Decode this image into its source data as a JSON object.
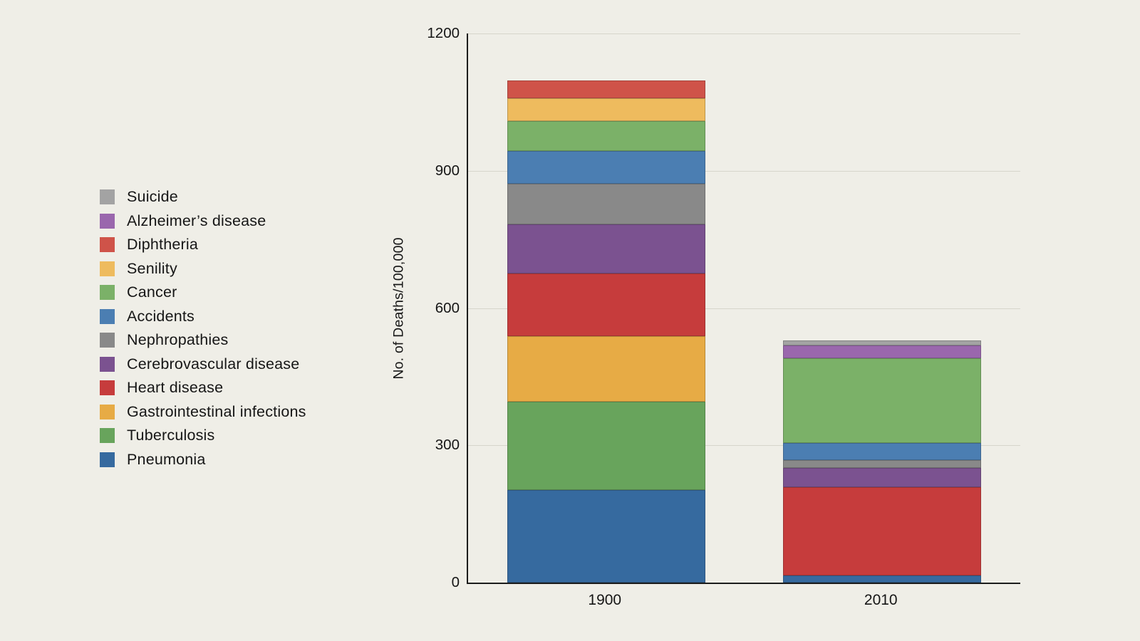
{
  "background_color": "#efeee7",
  "chart_data": {
    "type": "bar",
    "stacked": true,
    "title": "",
    "xlabel": "",
    "ylabel": "No. of Deaths/100,000",
    "ylim": [
      0,
      1200
    ],
    "yticks": [
      0,
      300,
      600,
      900,
      1200
    ],
    "grid": true,
    "legend_position": "left",
    "legend_order_top_to_bottom": [
      "Suicide",
      "Alzheimer’s disease",
      "Diphtheria",
      "Senility",
      "Cancer",
      "Accidents",
      "Nephropathies",
      "Cerebrovascular disease",
      "Heart disease",
      "Gastrointestinal infections",
      "Tuberculosis",
      "Pneumonia"
    ],
    "categories": [
      "1900",
      "2010"
    ],
    "series": [
      {
        "name": "Pneumonia",
        "color": "#366a9f",
        "values": [
          202,
          16
        ]
      },
      {
        "name": "Tuberculosis",
        "color": "#68a45c",
        "values": [
          194,
          0
        ]
      },
      {
        "name": "Gastrointestinal infections",
        "color": "#e7ab45",
        "values": [
          143,
          0
        ]
      },
      {
        "name": "Heart disease",
        "color": "#c63c3c",
        "values": [
          137,
          193
        ]
      },
      {
        "name": "Cerebrovascular disease",
        "color": "#7b5290",
        "values": [
          107,
          42
        ]
      },
      {
        "name": "Nephropathies",
        "color": "#898989",
        "values": [
          89,
          16
        ]
      },
      {
        "name": "Accidents",
        "color": "#4b7eb2",
        "values": [
          72,
          38
        ]
      },
      {
        "name": "Cancer",
        "color": "#7bb168",
        "values": [
          64,
          186
        ]
      },
      {
        "name": "Senility",
        "color": "#eebb5e",
        "values": [
          50,
          0
        ]
      },
      {
        "name": "Diphtheria",
        "color": "#cf5349",
        "values": [
          40,
          0
        ]
      },
      {
        "name": "Alzheimer’s disease",
        "color": "#9a67ad",
        "values": [
          0,
          27
        ]
      },
      {
        "name": "Suicide",
        "color": "#a3a3a3",
        "values": [
          0,
          12
        ]
      }
    ]
  }
}
